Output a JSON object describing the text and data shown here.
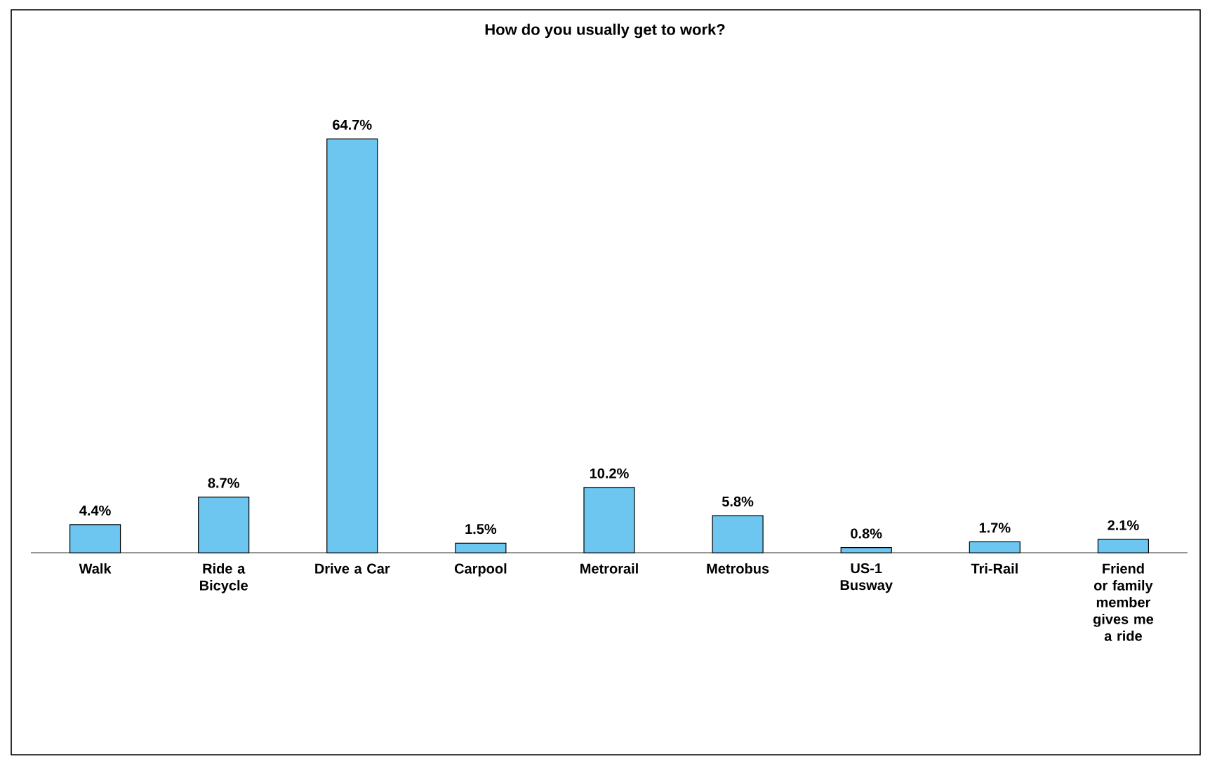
{
  "chart_data": {
    "type": "bar",
    "title": "How do you usually get to work?",
    "categories": [
      "Walk",
      "Ride a Bicycle",
      "Drive a Car",
      "Carpool",
      "Metrorail",
      "Metrobus",
      "US-1 Busway",
      "Tri-Rail",
      "Friend or family member gives me a ride"
    ],
    "values": [
      4.4,
      8.7,
      64.7,
      1.5,
      10.2,
      5.8,
      0.8,
      1.7,
      2.1
    ],
    "value_labels": [
      "4.4%",
      "8.7%",
      "64.7%",
      "1.5%",
      "10.2%",
      "5.8%",
      "0.8%",
      "1.7%",
      "2.1%"
    ],
    "color": "#6cc6ef",
    "ylim": [
      0,
      64.7
    ],
    "tick_labels": "x"
  }
}
